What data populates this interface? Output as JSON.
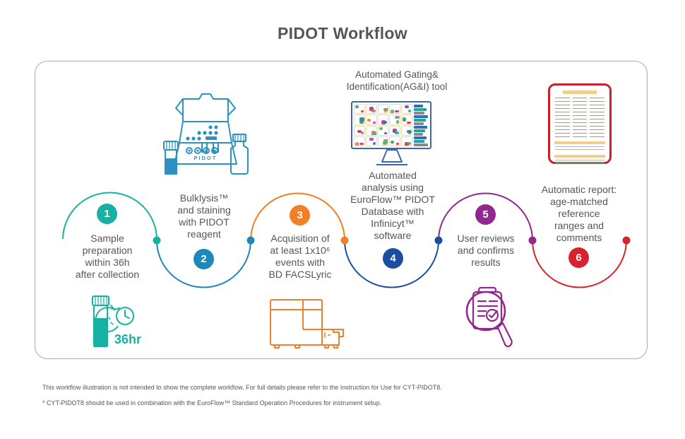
{
  "title": "PIDOT Workflow",
  "agi_tool": {
    "line1": "Automated Gating&",
    "line2": "Identification(AG&I) tool"
  },
  "steps": [
    {
      "number": "1",
      "color": "#17b1a3",
      "lines": [
        "Sample",
        "preparation",
        "within 36h",
        "after collection"
      ]
    },
    {
      "number": "2",
      "color": "#1f88ba",
      "lines": [
        "Bulklysis™",
        "and staining",
        "with PIDOT",
        "reagent"
      ]
    },
    {
      "number": "3",
      "color": "#f07f26",
      "lines": [
        "Acquisition of",
        "at least 1x10⁶",
        "events with",
        "BD FACSLyric"
      ]
    },
    {
      "number": "4",
      "color": "#1b4e9e",
      "lines": [
        "Automated",
        "analysis using",
        "EuroFlow™ PIDOT",
        "Database with",
        "Infinicyt™",
        "software"
      ]
    },
    {
      "number": "5",
      "color": "#93278f",
      "lines": [
        "User reviews",
        "and confirms",
        "results"
      ]
    },
    {
      "number": "6",
      "color": "#d8222f",
      "lines": [
        "Automatic report:",
        "age-matched",
        "reference",
        "ranges and",
        "comments"
      ]
    }
  ],
  "icons": {
    "kit_box_label": "PIDOT",
    "timer_label": "36hr",
    "kit_stroke": "#2d91c1",
    "timer_stroke": "#17b1a3",
    "cytometer_stroke": "#f0802a",
    "monitor_stroke": "#3a67b0",
    "magnifier_stroke": "#93278f",
    "report_border": "#c9202e"
  },
  "monitor": {
    "palette": [
      "#8e3a96",
      "#2f9e4f",
      "#2b6fbb",
      "#d72b36",
      "#e8851f",
      "#19a89a",
      "#c92bb0",
      "#57b847",
      "#8a8a8a"
    ]
  },
  "footnotes": [
    "This workflow illustration is not intended to show the complete workflow. For full details please refer to the Instruction for Use for CYT-PIDOT8.",
    "* CYT-PIDOT8 should be used in combination with the EuroFlow™ Standard Operation Procedures for instrument setup."
  ]
}
